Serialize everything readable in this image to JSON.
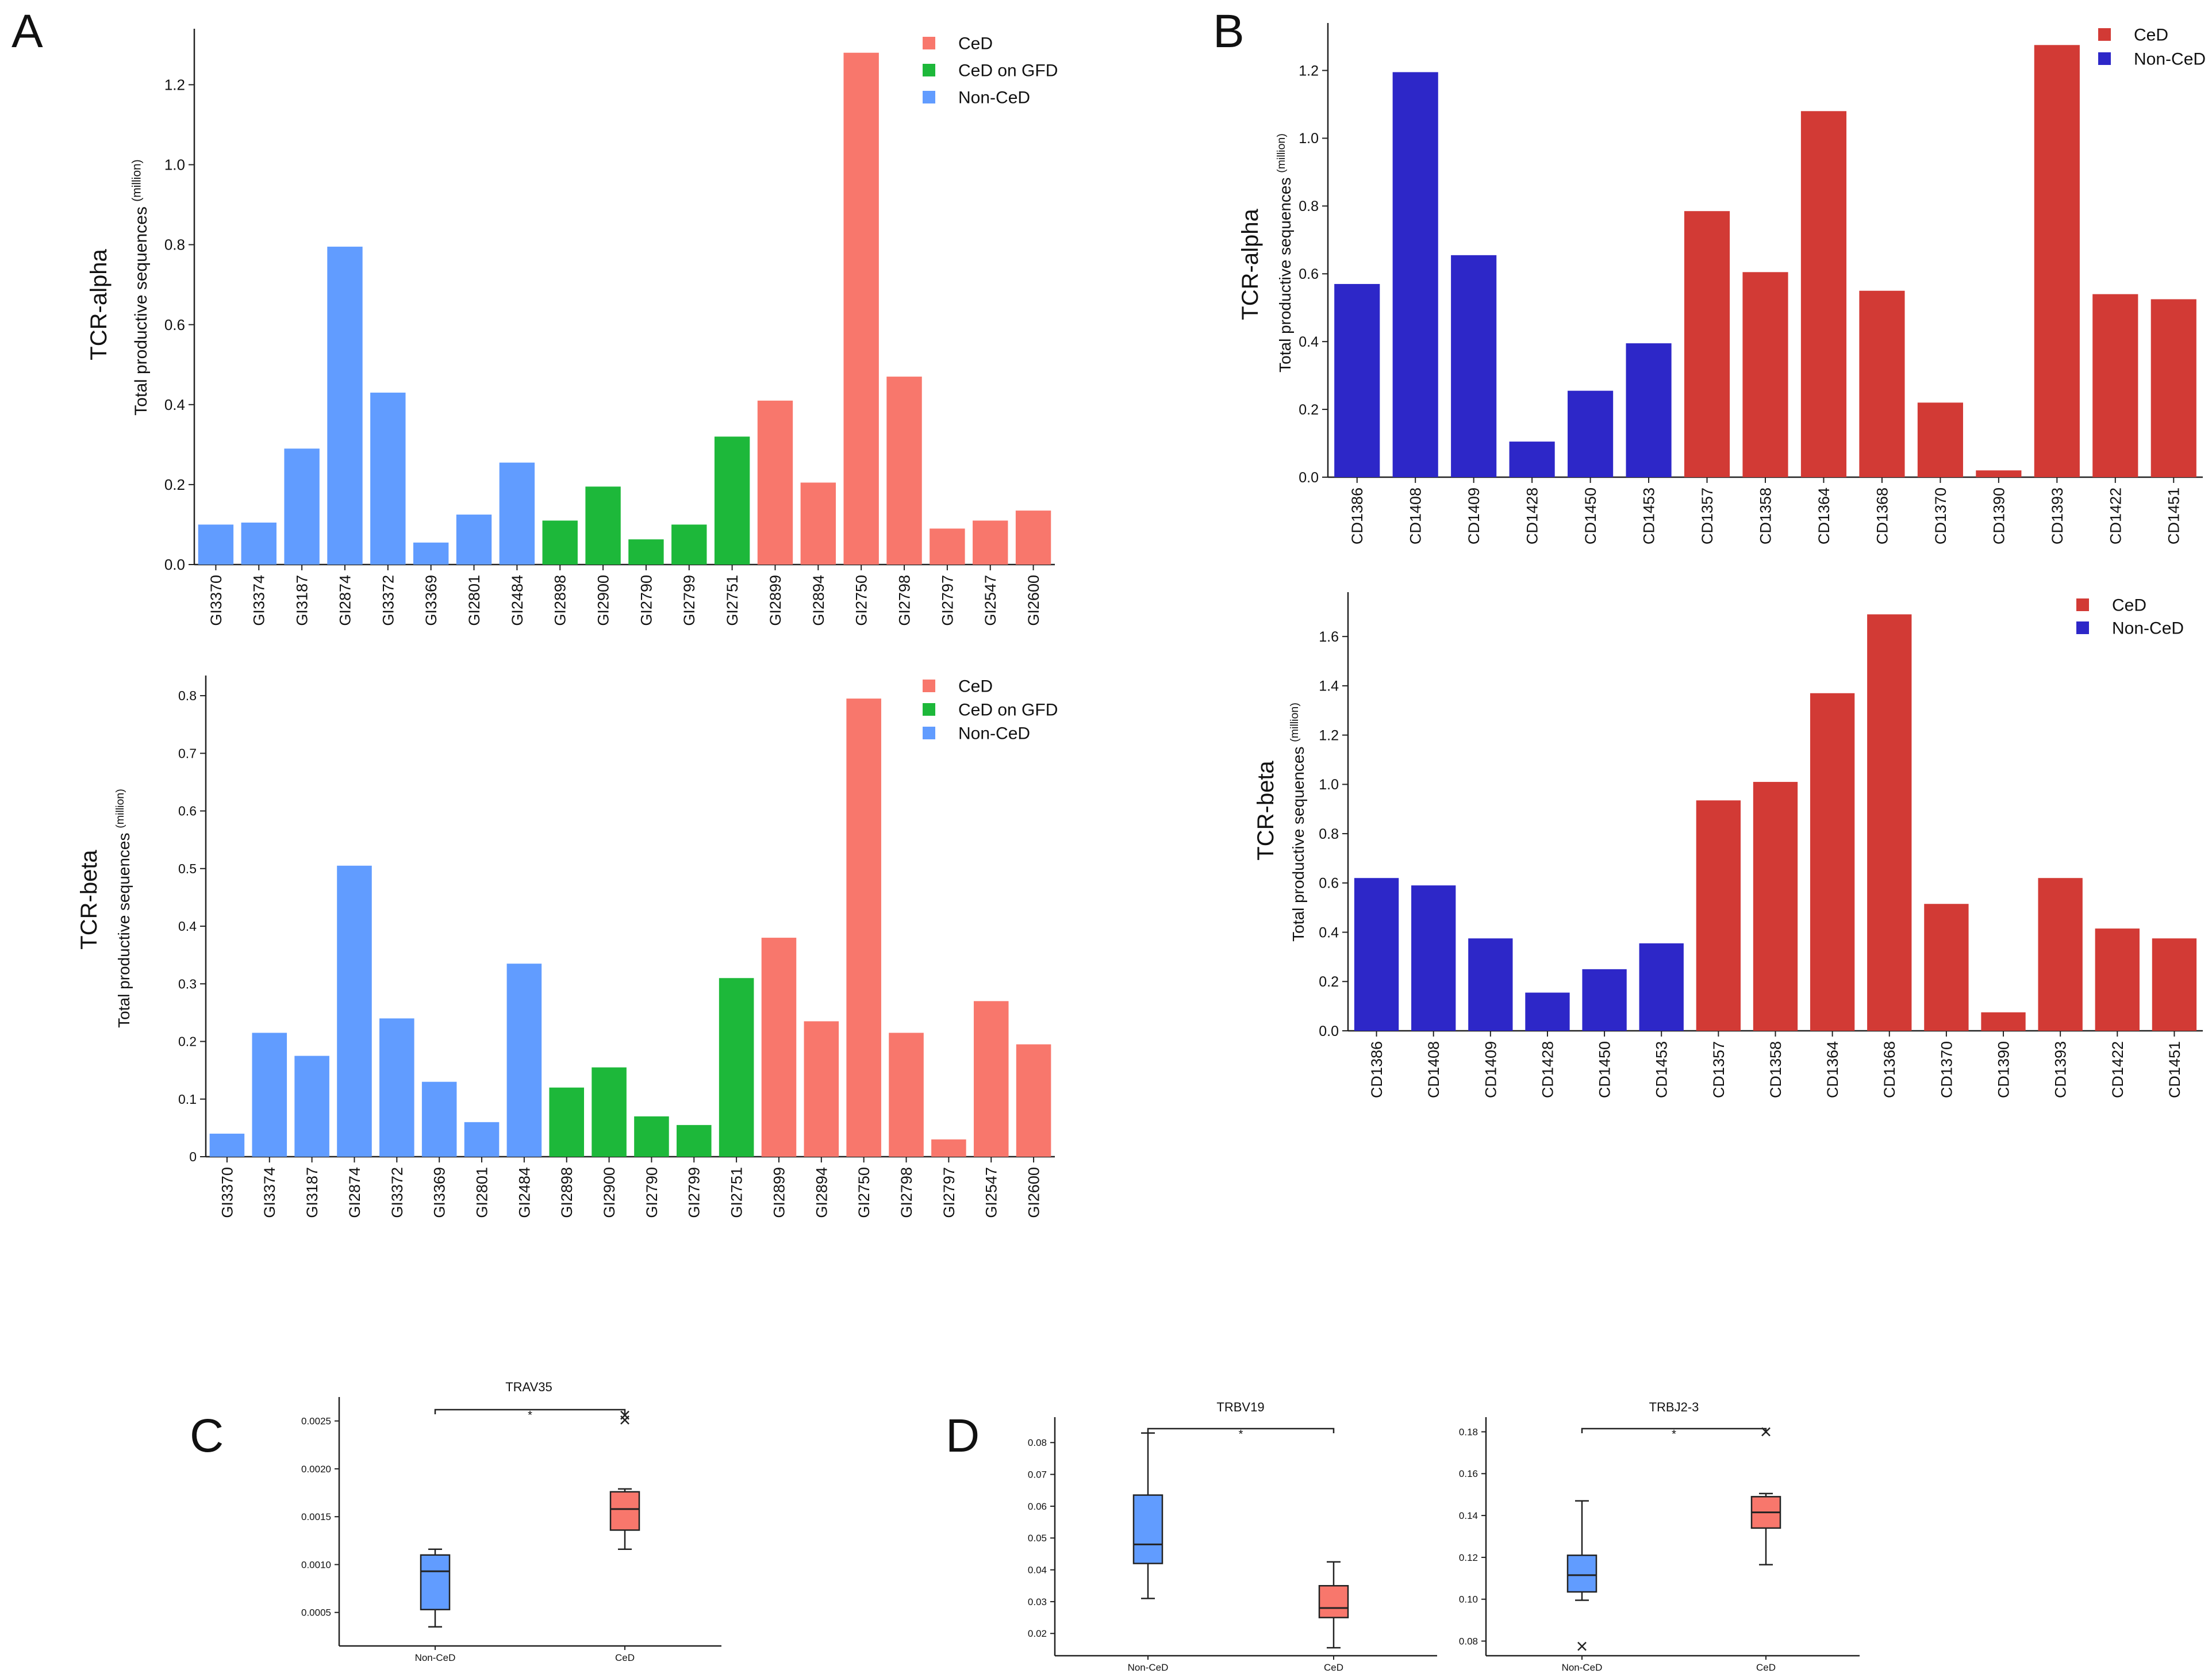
{
  "panel_letters": [
    "A",
    "B",
    "C",
    "D"
  ],
  "colors": {
    "ced_light": "#F8776C",
    "gfd": "#1DB83A",
    "nonced_light": "#619CFF",
    "ced_dark": "#D23A35",
    "nonced_dark": "#2D27C8"
  },
  "chart_data": [
    {
      "id": "A-alpha",
      "panel": "A",
      "type": "bar",
      "row_label": "TCR-alpha",
      "ylabel": "Total productive sequences",
      "ylabel_unit": "(million)",
      "ylim": [
        0,
        1.34
      ],
      "yticks": [
        0.0,
        0.2,
        0.4,
        0.6,
        0.8,
        1.0,
        1.2
      ],
      "ytick_labels": [
        "0.0",
        "0.2",
        "0.4",
        "0.6",
        "0.8",
        "1.0",
        "1.2"
      ],
      "legend": [
        {
          "label": "CeD",
          "group": "ced_light"
        },
        {
          "label": "CeD on GFD",
          "group": "gfd"
        },
        {
          "label": "Non-CeD",
          "group": "nonced_light"
        }
      ],
      "categories": [
        "GI3370",
        "GI3374",
        "GI3187",
        "GI2874",
        "GI3372",
        "GI3369",
        "GI2801",
        "GI2484",
        "GI2898",
        "GI2900",
        "GI2790",
        "GI2799",
        "GI2751",
        "GI2899",
        "GI2894",
        "GI2750",
        "GI2798",
        "GI2797",
        "GI2547",
        "GI2600"
      ],
      "values": [
        0.1,
        0.105,
        0.29,
        0.795,
        0.43,
        0.055,
        0.125,
        0.255,
        0.11,
        0.195,
        0.063,
        0.1,
        0.32,
        0.41,
        0.205,
        1.28,
        0.47,
        0.09,
        0.11,
        0.135
      ],
      "groups": [
        "nonced_light",
        "nonced_light",
        "nonced_light",
        "nonced_light",
        "nonced_light",
        "nonced_light",
        "nonced_light",
        "nonced_light",
        "gfd",
        "gfd",
        "gfd",
        "gfd",
        "gfd",
        "ced_light",
        "ced_light",
        "ced_light",
        "ced_light",
        "ced_light",
        "ced_light",
        "ced_light"
      ]
    },
    {
      "id": "A-beta",
      "panel": "A",
      "type": "bar",
      "row_label": "TCR-beta",
      "ylabel": "Total productive sequences",
      "ylabel_unit": "(million)",
      "ylim": [
        0,
        0.835
      ],
      "yticks": [
        0,
        0.1,
        0.2,
        0.3,
        0.4,
        0.5,
        0.6,
        0.7,
        0.8
      ],
      "ytick_labels": [
        "0",
        "0.1",
        "0.2",
        "0.3",
        "0.4",
        "0.5",
        "0.6",
        "0.7",
        "0.8"
      ],
      "legend": [
        {
          "label": "CeD",
          "group": "ced_light"
        },
        {
          "label": "CeD on GFD",
          "group": "gfd"
        },
        {
          "label": "Non-CeD",
          "group": "nonced_light"
        }
      ],
      "categories": [
        "GI3370",
        "GI3374",
        "GI3187",
        "GI2874",
        "GI3372",
        "GI3369",
        "GI2801",
        "GI2484",
        "GI2898",
        "GI2900",
        "GI2790",
        "GI2799",
        "GI2751",
        "GI2899",
        "GI2894",
        "GI2750",
        "GI2798",
        "GI2797",
        "GI2547",
        "GI2600"
      ],
      "values": [
        0.04,
        0.215,
        0.175,
        0.505,
        0.24,
        0.13,
        0.06,
        0.335,
        0.12,
        0.155,
        0.07,
        0.055,
        0.31,
        0.38,
        0.235,
        0.795,
        0.215,
        0.03,
        0.27,
        0.195
      ],
      "groups": [
        "nonced_light",
        "nonced_light",
        "nonced_light",
        "nonced_light",
        "nonced_light",
        "nonced_light",
        "nonced_light",
        "nonced_light",
        "gfd",
        "gfd",
        "gfd",
        "gfd",
        "gfd",
        "ced_light",
        "ced_light",
        "ced_light",
        "ced_light",
        "ced_light",
        "ced_light",
        "ced_light"
      ]
    },
    {
      "id": "B-alpha",
      "panel": "B",
      "type": "bar",
      "row_label": "TCR-alpha",
      "ylabel": "Total productive sequences",
      "ylabel_unit": "(million)",
      "ylim": [
        0,
        1.34
      ],
      "yticks": [
        0.0,
        0.2,
        0.4,
        0.6,
        0.8,
        1.0,
        1.2
      ],
      "ytick_labels": [
        "0.0",
        "0.2",
        "0.4",
        "0.6",
        "0.8",
        "1.0",
        "1.2"
      ],
      "legend": [
        {
          "label": "CeD",
          "group": "ced_dark"
        },
        {
          "label": "Non-CeD",
          "group": "nonced_dark"
        }
      ],
      "categories": [
        "CD1386",
        "CD1408",
        "CD1409",
        "CD1428",
        "CD1450",
        "CD1453",
        "CD1357",
        "CD1358",
        "CD1364",
        "CD1368",
        "CD1370",
        "CD1390",
        "CD1393",
        "CD1422",
        "CD1451"
      ],
      "values": [
        0.57,
        1.195,
        0.655,
        0.105,
        0.255,
        0.395,
        0.785,
        0.605,
        1.08,
        0.55,
        0.22,
        0.02,
        1.275,
        0.54,
        0.525
      ],
      "groups": [
        "nonced_dark",
        "nonced_dark",
        "nonced_dark",
        "nonced_dark",
        "nonced_dark",
        "nonced_dark",
        "ced_dark",
        "ced_dark",
        "ced_dark",
        "ced_dark",
        "ced_dark",
        "ced_dark",
        "ced_dark",
        "ced_dark",
        "ced_dark"
      ]
    },
    {
      "id": "B-beta",
      "panel": "B",
      "type": "bar",
      "row_label": "TCR-beta",
      "ylabel": "Total productive sequences",
      "ylabel_unit": "(million)",
      "ylim": [
        0,
        1.78
      ],
      "yticks": [
        0.0,
        0.2,
        0.4,
        0.6,
        0.8,
        1.0,
        1.2,
        1.4,
        1.6
      ],
      "ytick_labels": [
        "0.0",
        "0.2",
        "0.4",
        "0.6",
        "0.8",
        "1.0",
        "1.2",
        "1.4",
        "1.6"
      ],
      "legend": [
        {
          "label": "CeD",
          "group": "ced_dark"
        },
        {
          "label": "Non-CeD",
          "group": "nonced_dark"
        }
      ],
      "categories": [
        "CD1386",
        "CD1408",
        "CD1409",
        "CD1428",
        "CD1450",
        "CD1453",
        "CD1357",
        "CD1358",
        "CD1364",
        "CD1368",
        "CD1370",
        "CD1390",
        "CD1393",
        "CD1422",
        "CD1451"
      ],
      "values": [
        0.62,
        0.59,
        0.375,
        0.155,
        0.25,
        0.355,
        0.935,
        1.01,
        1.37,
        1.69,
        0.515,
        0.075,
        0.62,
        0.415,
        0.375
      ],
      "groups": [
        "nonced_dark",
        "nonced_dark",
        "nonced_dark",
        "nonced_dark",
        "nonced_dark",
        "nonced_dark",
        "ced_dark",
        "ced_dark",
        "ced_dark",
        "ced_dark",
        "ced_dark",
        "ced_dark",
        "ced_dark",
        "ced_dark",
        "ced_dark"
      ]
    },
    {
      "id": "C-TRAV35",
      "panel": "C",
      "type": "box",
      "title": "TRAV35",
      "significance": "*",
      "ylim": [
        0.00015,
        0.00275
      ],
      "yticks": [
        0.0005,
        0.001,
        0.0015,
        0.002,
        0.0025
      ],
      "ytick_labels": [
        "0.0005",
        "0.0010",
        "0.0015",
        "0.0020",
        "0.0025"
      ],
      "boxes": [
        {
          "label": "Non-CeD",
          "group": "nonced_light",
          "min": 0.00035,
          "q1": 0.00053,
          "median": 0.00093,
          "q3": 0.0011,
          "max": 0.00116,
          "outliers": []
        },
        {
          "label": "CeD",
          "group": "ced_light",
          "min": 0.00116,
          "q1": 0.00136,
          "median": 0.00158,
          "q3": 0.00176,
          "max": 0.00179,
          "outliers": [
            0.00251,
            0.00256
          ]
        }
      ]
    },
    {
      "id": "D-TRBV19",
      "panel": "D",
      "type": "box",
      "title": "TRBV19",
      "significance": "*",
      "ylim": [
        0.013,
        0.088
      ],
      "yticks": [
        0.02,
        0.03,
        0.04,
        0.05,
        0.06,
        0.07,
        0.08
      ],
      "ytick_labels": [
        "0.02",
        "0.03",
        "0.04",
        "0.05",
        "0.06",
        "0.07",
        "0.08"
      ],
      "boxes": [
        {
          "label": "Non-CeD",
          "group": "nonced_light",
          "min": 0.031,
          "q1": 0.042,
          "median": 0.048,
          "q3": 0.0635,
          "max": 0.083,
          "outliers": []
        },
        {
          "label": "CeD",
          "group": "ced_light",
          "min": 0.0155,
          "q1": 0.025,
          "median": 0.028,
          "q3": 0.035,
          "max": 0.0425,
          "outliers": []
        }
      ]
    },
    {
      "id": "D-TRBJ2-3",
      "panel": "D",
      "type": "box",
      "title": "TRBJ2-3",
      "significance": "*",
      "ylim": [
        0.073,
        0.187
      ],
      "yticks": [
        0.08,
        0.1,
        0.12,
        0.14,
        0.16,
        0.18
      ],
      "ytick_labels": [
        "0.08",
        "0.10",
        "0.12",
        "0.14",
        "0.16",
        "0.18"
      ],
      "boxes": [
        {
          "label": "Non-CeD",
          "group": "nonced_light",
          "min": 0.0995,
          "q1": 0.1035,
          "median": 0.1115,
          "q3": 0.121,
          "max": 0.147,
          "outliers": [
            0.0775
          ]
        },
        {
          "label": "CeD",
          "group": "ced_light",
          "min": 0.1165,
          "q1": 0.134,
          "median": 0.1415,
          "q3": 0.149,
          "max": 0.1505,
          "outliers": [
            0.18
          ]
        }
      ]
    }
  ]
}
